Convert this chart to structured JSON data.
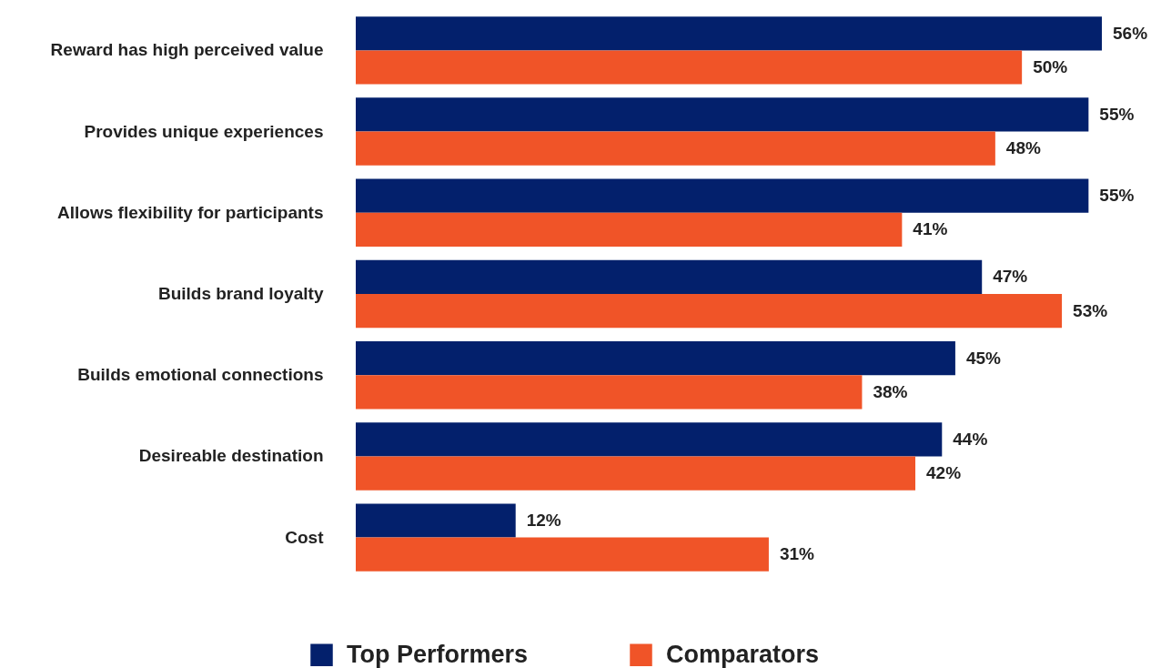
{
  "chart_data": {
    "type": "bar",
    "orientation": "horizontal",
    "categories": [
      "Reward has high perceived value",
      "Provides unique experiences",
      "Allows flexibility for participants",
      "Builds brand loyalty",
      "Builds emotional connections",
      "Desireable destination",
      "Cost"
    ],
    "series": [
      {
        "name": "Top Performers",
        "color": "#03206c",
        "values": [
          56,
          55,
          55,
          47,
          45,
          44,
          12
        ],
        "value_labels": [
          "56%",
          "55%",
          "55%",
          "47%",
          "45%",
          "44%",
          "12%"
        ]
      },
      {
        "name": "Comparators",
        "color": "#f05428",
        "values": [
          50,
          48,
          41,
          53,
          38,
          42,
          31
        ],
        "value_labels": [
          "50%",
          "48%",
          "41%",
          "53%",
          "38%",
          "42%",
          "31%"
        ]
      }
    ],
    "tick_labels": "y",
    "grid": false,
    "legend": "bottom"
  }
}
